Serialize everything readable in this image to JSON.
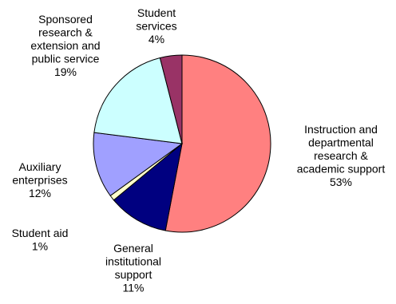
{
  "chart_data": {
    "type": "pie",
    "start_angle_deg": 0,
    "direction": "clockwise",
    "slices": [
      {
        "label": [
          "Instruction and",
          "departmental",
          "research &",
          "academic support"
        ],
        "pct_text": "53%",
        "value": 53,
        "color": "#ff8080"
      },
      {
        "label": [
          "General",
          "institutional",
          "support"
        ],
        "pct_text": "11%",
        "value": 11,
        "color": "#000080"
      },
      {
        "label": [
          "Student aid"
        ],
        "pct_text": "1%",
        "value": 1,
        "color": "#ffffcc"
      },
      {
        "label": [
          "Auxiliary",
          "enterprises"
        ],
        "pct_text": "12%",
        "value": 12,
        "color": "#a0a0ff"
      },
      {
        "label": [
          "Sponsored",
          "research &",
          "extension and",
          "public service"
        ],
        "pct_text": "19%",
        "value": 19,
        "color": "#ccffff"
      },
      {
        "label": [
          "Student",
          "services"
        ],
        "pct_text": "4%",
        "value": 4,
        "color": "#993366"
      }
    ]
  }
}
